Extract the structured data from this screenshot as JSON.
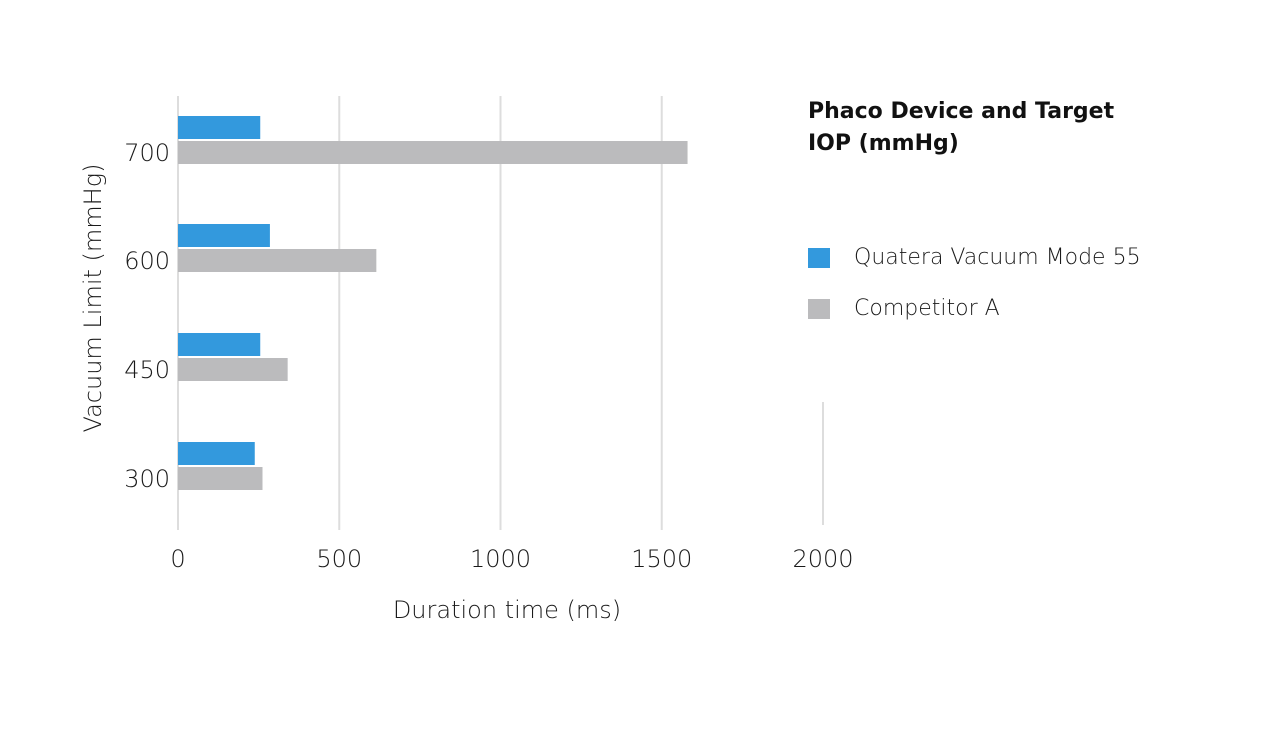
{
  "chart_data": {
    "type": "bar",
    "orientation": "horizontal",
    "categories": [
      "700",
      "600",
      "450",
      "300"
    ],
    "series": [
      {
        "name": "Quatera Vacuum Mode 55",
        "color": "#3399DD",
        "values": [
          255,
          285,
          255,
          238
        ]
      },
      {
        "name": "Competitor A",
        "color": "#BBBBBD",
        "values": [
          1580,
          615,
          340,
          262
        ]
      }
    ],
    "xticks": [
      "0",
      "500",
      "1000",
      "1500",
      "2000"
    ],
    "xlim": [
      0,
      2000
    ],
    "xlabel": "Duration time (ms)",
    "ylabel": "Vacuum Limit (mmHg)",
    "grid": true,
    "legend_title": "Phaco Device and Target IOP (mmHg)",
    "legend_position": "right"
  }
}
